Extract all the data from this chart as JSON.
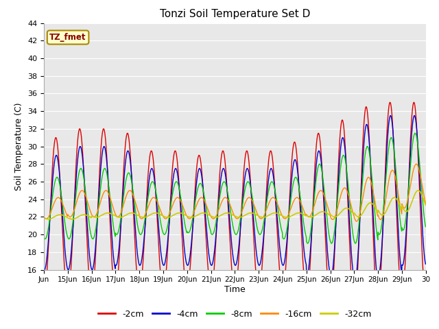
{
  "title": "Tonzi Soil Temperature Set D",
  "xlabel": "Time",
  "ylabel": "Soil Temperature (C)",
  "ylim": [
    16,
    44
  ],
  "start_day": 14,
  "num_days": 16,
  "xtick_days": [
    14,
    15,
    16,
    17,
    18,
    19,
    20,
    21,
    22,
    23,
    24,
    25,
    26,
    27,
    28,
    29,
    30
  ],
  "xtick_labels": [
    "Jun",
    "15Jun",
    "16Jun",
    "17Jun",
    "18Jun",
    "19Jun",
    "20Jun",
    "21Jun",
    "22Jun",
    "23Jun",
    "24Jun",
    "25Jun",
    "26Jun",
    "27Jun",
    "28Jun",
    "29Jun",
    "30"
  ],
  "ytick_vals": [
    16,
    18,
    20,
    22,
    24,
    26,
    28,
    30,
    32,
    34,
    36,
    38,
    40,
    42,
    44
  ],
  "series": [
    {
      "label": "-2cm",
      "color": "#dd0000",
      "lw": 1.0
    },
    {
      "label": "-4cm",
      "color": "#0000cc",
      "lw": 1.0
    },
    {
      "label": "-8cm",
      "color": "#00cc00",
      "lw": 1.0
    },
    {
      "label": "-16cm",
      "color": "#ff8800",
      "lw": 1.0
    },
    {
      "label": "-32cm",
      "color": "#cccc00",
      "lw": 1.2
    }
  ],
  "annotation_text": "TZ_fmet",
  "annotation_bg": "#ffffcc",
  "annotation_border": "#aa8800",
  "annotation_text_color": "#880000",
  "fig_bg": "#ffffff",
  "plot_bg": "#e8e8e8",
  "grid_color": "#ffffff",
  "points_per_day": 96,
  "base_2cm": [
    22.0,
    22.5,
    22.5,
    22.5,
    21.5,
    21.5,
    21.5,
    21.5,
    21.5,
    21.5,
    22.0,
    22.0,
    22.5,
    23.0,
    24.0,
    24.0
  ],
  "amp_2cm": [
    9.0,
    9.5,
    9.5,
    9.0,
    8.0,
    8.0,
    7.5,
    8.0,
    8.0,
    8.0,
    8.5,
    9.5,
    10.5,
    11.5,
    11.0,
    11.0
  ],
  "base_4cm": [
    22.5,
    23.0,
    23.0,
    23.0,
    22.0,
    22.0,
    22.0,
    22.0,
    22.0,
    22.0,
    22.5,
    22.5,
    23.0,
    23.5,
    24.5,
    25.0
  ],
  "amp_4cm": [
    6.5,
    7.0,
    7.0,
    6.5,
    5.5,
    5.5,
    5.5,
    5.5,
    5.5,
    5.5,
    6.0,
    7.0,
    8.0,
    9.0,
    9.0,
    8.5
  ],
  "base_8cm": [
    23.0,
    23.5,
    23.5,
    23.5,
    23.0,
    23.0,
    23.0,
    23.0,
    23.0,
    23.0,
    23.0,
    23.5,
    24.0,
    24.5,
    25.5,
    26.0
  ],
  "amp_8cm": [
    3.5,
    4.0,
    4.0,
    3.5,
    3.0,
    3.0,
    2.8,
    3.0,
    3.0,
    3.0,
    3.5,
    4.5,
    5.0,
    5.5,
    5.5,
    5.5
  ],
  "base_16cm": [
    23.0,
    23.5,
    23.5,
    23.5,
    23.0,
    23.0,
    23.0,
    23.0,
    23.0,
    23.0,
    23.0,
    23.5,
    23.5,
    24.0,
    24.5,
    25.5
  ],
  "amp_16cm": [
    1.2,
    1.5,
    1.5,
    1.5,
    1.2,
    1.2,
    1.2,
    1.2,
    1.2,
    1.2,
    1.2,
    1.5,
    1.8,
    2.5,
    2.8,
    2.5
  ],
  "base_32cm": [
    22.0,
    22.0,
    22.2,
    22.2,
    22.2,
    22.2,
    22.2,
    22.2,
    22.2,
    22.2,
    22.2,
    22.3,
    22.5,
    22.8,
    23.2,
    23.8
  ],
  "amp_32cm": [
    0.25,
    0.25,
    0.25,
    0.25,
    0.25,
    0.25,
    0.25,
    0.25,
    0.25,
    0.25,
    0.25,
    0.3,
    0.5,
    0.8,
    1.0,
    1.2
  ],
  "phase_2cm": 0.0,
  "phase_4cm": -0.02,
  "phase_8cm": -0.05,
  "phase_16cm": -0.1,
  "phase_32cm": -0.18
}
